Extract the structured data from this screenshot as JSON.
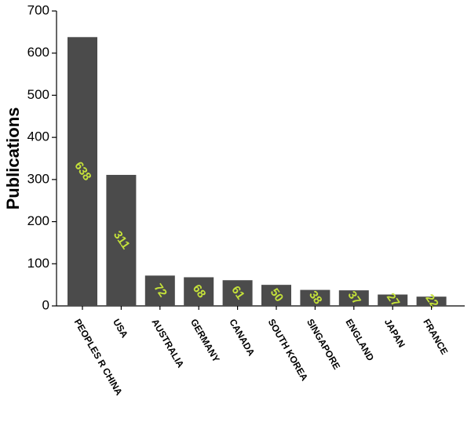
{
  "chart_data": {
    "type": "bar",
    "y_label": "Publications",
    "categories": [
      "PEOPLES R CHINA",
      "USA",
      "AUSTRALIA",
      "GERMANY",
      "CANADA",
      "SOUTH KOREA",
      "SINGAPORE",
      "ENGLAND",
      "JAPAN",
      "FRANCE"
    ],
    "values": [
      638,
      311,
      72,
      68,
      61,
      50,
      38,
      37,
      27,
      22
    ],
    "color": "#4b4b4b",
    "label_color": "#c5e23a",
    "ylim": [
      0,
      700
    ],
    "yticks": [
      0,
      100,
      200,
      300,
      400,
      500,
      600,
      700
    ],
    "grid": false
  }
}
